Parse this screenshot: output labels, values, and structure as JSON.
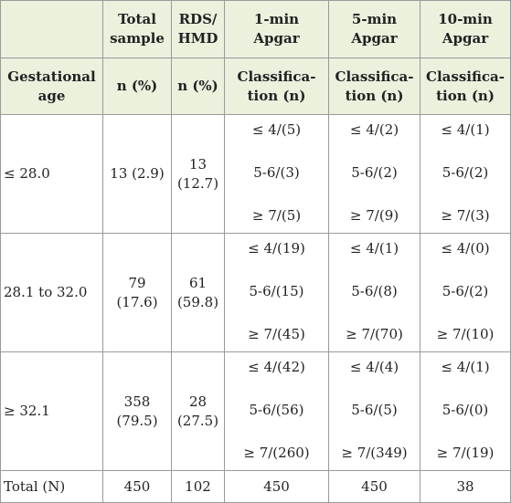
{
  "table": {
    "header": {
      "top": [
        [
          "Total",
          "sample"
        ],
        [
          "RDS/",
          "HMD"
        ],
        [
          "1-min",
          "Apgar"
        ],
        [
          "5-min",
          "Apgar"
        ],
        [
          "10-min",
          "Apgar"
        ]
      ],
      "sub": [
        [
          "Gestational",
          "age"
        ],
        [
          "n (%)"
        ],
        [
          "n (%)"
        ],
        [
          "Classifica-",
          "tion (n)"
        ],
        [
          "Classifica-",
          "tion (n)"
        ],
        [
          "Classifica-",
          "tion (n)"
        ]
      ]
    },
    "rows": [
      [
        [
          "≤ 28.0"
        ],
        [
          "13 (2.9)"
        ],
        [
          "13",
          "(12.7)"
        ],
        [
          "≤ 4/(5)",
          "5-6/(3)",
          "≥ 7/(5)"
        ],
        [
          "≤ 4/(2)",
          "5-6/(2)",
          "≥ 7/(9)"
        ],
        [
          "≤ 4/(1)",
          "5-6/(2)",
          "≥ 7/(3)"
        ]
      ],
      [
        [
          "28.1 to 32.0"
        ],
        [
          "79",
          "(17.6)"
        ],
        [
          "61",
          "(59.8)"
        ],
        [
          "≤ 4/(19)",
          "5-6/(15)",
          "≥ 7/(45)"
        ],
        [
          "≤ 4/(1)",
          "5-6/(8)",
          "≥ 7/(70)"
        ],
        [
          "≤ 4/(0)",
          "5-6/(2)",
          "≥ 7/(10)"
        ]
      ],
      [
        [
          "≥ 32.1"
        ],
        [
          "358",
          "(79.5)"
        ],
        [
          "28",
          "(27.5)"
        ],
        [
          "≤ 4/(42)",
          "5-6/(56)",
          "≥ 7/(260)"
        ],
        [
          "≤ 4/(4)",
          "5-6/(5)",
          "≥ 7/(349)"
        ],
        [
          "≤ 4/(1)",
          "5-6/(0)",
          "≥ 7/(19)"
        ]
      ],
      [
        [
          "Total (N)"
        ],
        [
          "450"
        ],
        [
          "102"
        ],
        [
          "450"
        ],
        [
          "450"
        ],
        [
          "38"
        ]
      ]
    ]
  }
}
